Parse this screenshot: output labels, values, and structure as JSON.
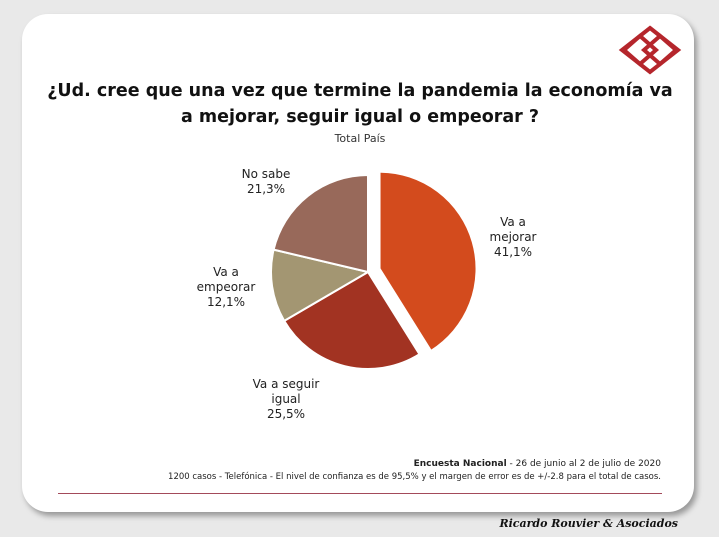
{
  "title": "¿Ud. cree que una vez que termine la pandemia la economía va a mejorar, seguir igual o empeorar ?",
  "subtitle": "Total País",
  "chart_data": {
    "type": "pie",
    "title": "¿Ud. cree que una vez que termine la pandemia la economía va a mejorar, seguir igual o empeorar ?",
    "subtitle": "Total País",
    "slices": [
      {
        "label": "Va a mejorar",
        "value": 41.1,
        "display": "41,1%",
        "color": "#d34b1d",
        "exploded": true
      },
      {
        "label": "Va a seguir igual",
        "value": 25.5,
        "display": "25,5%",
        "color": "#a23322",
        "exploded": false
      },
      {
        "label": "Va a empeorar",
        "value": 12.1,
        "display": "12,1%",
        "color": "#a39672",
        "exploded": false
      },
      {
        "label": "No sabe",
        "value": 21.3,
        "display": "21,3%",
        "color": "#98695a",
        "exploded": false
      }
    ]
  },
  "labels": {
    "mejorar": {
      "name_line1": "Va a",
      "name_line2": "mejorar",
      "pct": "41,1%"
    },
    "igual": {
      "name_line1": "Va a seguir",
      "name_line2": "igual",
      "pct": "25,5%"
    },
    "empeorar": {
      "name_line1": "Va a",
      "name_line2": "empeorar",
      "pct": "12,1%"
    },
    "nosabe": {
      "name_line1": "No sabe",
      "pct": "21,3%"
    }
  },
  "footer": {
    "survey_name": "Encuesta Nacional",
    "survey_dates": " - 26 de junio al 2 de julio de 2020",
    "methodology": "1200 casos - Telefónica  - El nivel de confianza es de 95,5% y el margen de error es de +/-2.8 para el total de casos."
  },
  "brand": "Ricardo Rouvier & Asociados",
  "logo": {
    "icon": "diamond-logo-icon",
    "color": "#b5262c"
  }
}
